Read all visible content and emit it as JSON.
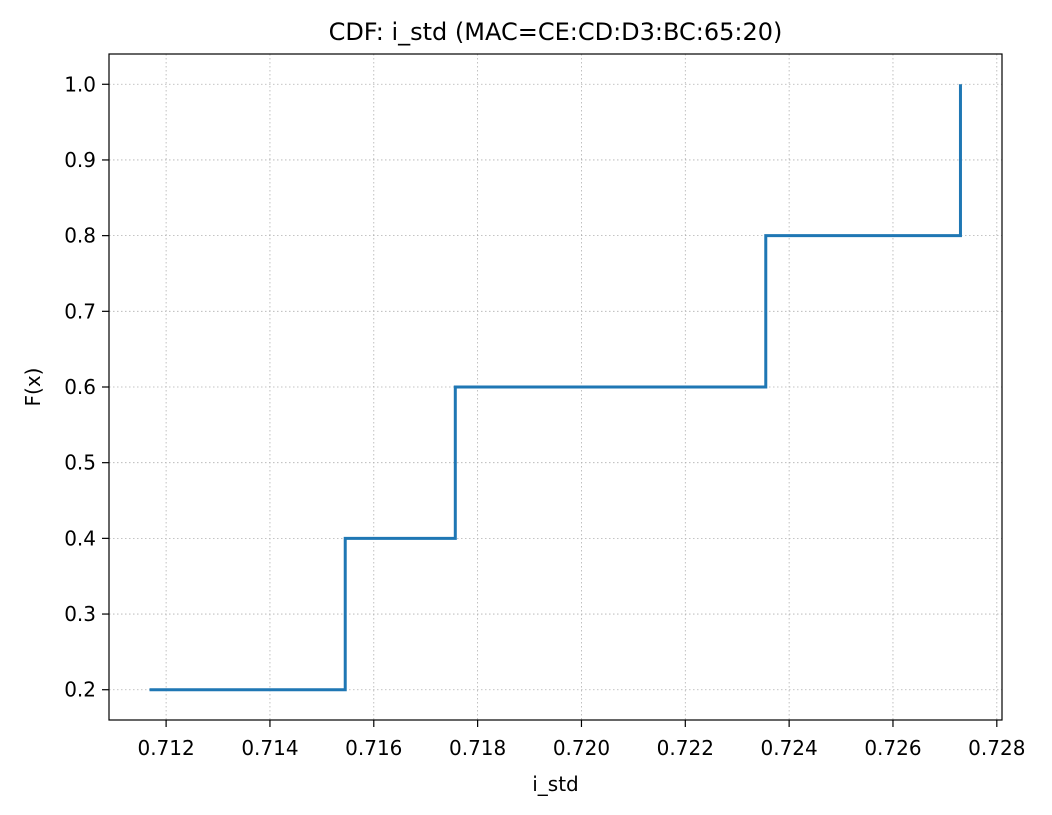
{
  "chart_data": {
    "type": "line",
    "step": "post",
    "title": "CDF: i_std (MAC=CE:CD:D3:BC:65:20)",
    "xlabel": "i_std",
    "ylabel": "F(x)",
    "xlim": [
      0.7109,
      0.7281
    ],
    "ylim": [
      0.16,
      1.04
    ],
    "grid": true,
    "x_ticks": [
      0.712,
      0.714,
      0.716,
      0.718,
      0.72,
      0.722,
      0.724,
      0.726,
      0.728
    ],
    "x_tick_labels": [
      "0.712",
      "0.714",
      "0.716",
      "0.718",
      "0.720",
      "0.722",
      "0.724",
      "0.726",
      "0.728"
    ],
    "y_ticks": [
      0.2,
      0.3,
      0.4,
      0.5,
      0.6,
      0.7,
      0.8,
      0.9,
      1.0
    ],
    "y_tick_labels": [
      "0.2",
      "0.3",
      "0.4",
      "0.5",
      "0.6",
      "0.7",
      "0.8",
      "0.9",
      "1.0"
    ],
    "series": [
      {
        "color": "#1f77b4",
        "points": [
          {
            "x": 0.71168,
            "y": 0.2
          },
          {
            "x": 0.71545,
            "y": 0.4
          },
          {
            "x": 0.71757,
            "y": 0.6
          },
          {
            "x": 0.72355,
            "y": 0.8
          },
          {
            "x": 0.7273,
            "y": 1.0
          }
        ]
      }
    ]
  }
}
